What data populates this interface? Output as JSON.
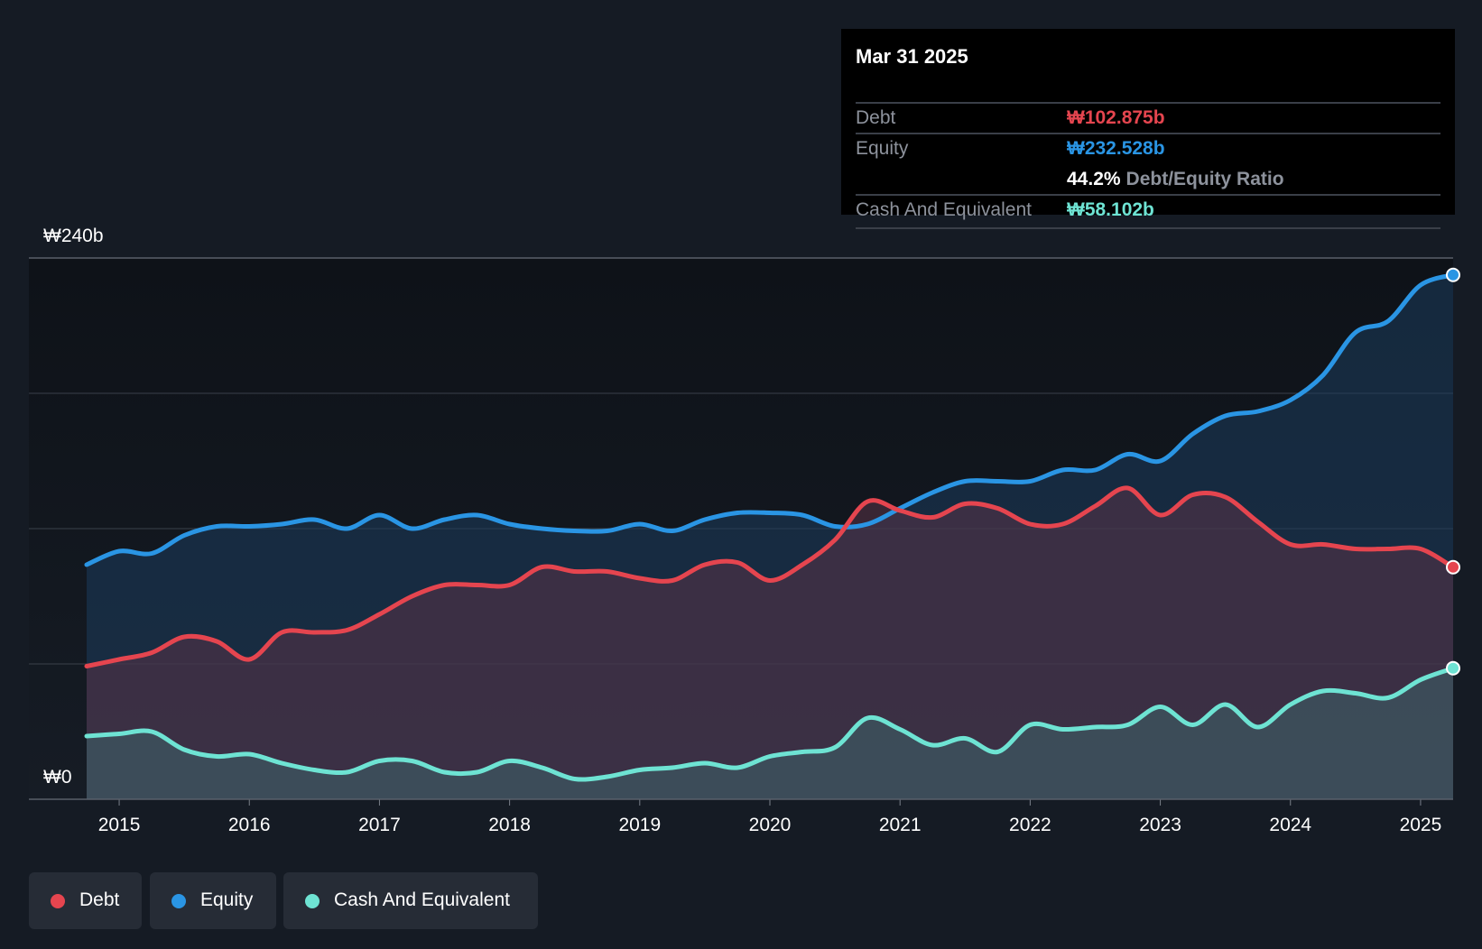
{
  "colors": {
    "debt": "#e5454f",
    "equity": "#2a95e4",
    "cash": "#6ee3d3",
    "grid": "#3a404a",
    "axis_text": "#ffffff"
  },
  "tooltip": {
    "date": "Mar 31 2025",
    "debt_label": "Debt",
    "debt_value": "₩102.875b",
    "equity_label": "Equity",
    "equity_value": "₩232.528b",
    "ratio_value": "44.2%",
    "ratio_label": "Debt/Equity Ratio",
    "cash_label": "Cash And Equivalent",
    "cash_value": "₩58.102b"
  },
  "legend": [
    {
      "label": "Debt",
      "color": "#e5454f"
    },
    {
      "label": "Equity",
      "color": "#2a95e4"
    },
    {
      "label": "Cash And Equivalent",
      "color": "#6ee3d3"
    }
  ],
  "chart_data": {
    "type": "area",
    "title": "",
    "xlabel": "",
    "ylabel": "",
    "currency": "KRW",
    "y_tick_labels": {
      "top": "₩240b",
      "bottom": "₩0"
    },
    "ylim": [
      0,
      240
    ],
    "xlim": [
      2014.75,
      2025.25
    ],
    "x_ticks": [
      2015,
      2016,
      2017,
      2018,
      2019,
      2020,
      2021,
      2022,
      2023,
      2024,
      2025
    ],
    "x_tick_labels": [
      "2015",
      "2016",
      "2017",
      "2018",
      "2019",
      "2020",
      "2021",
      "2022",
      "2023",
      "2024",
      "2025"
    ],
    "x": [
      2014.75,
      2015.0,
      2015.25,
      2015.5,
      2015.75,
      2016.0,
      2016.25,
      2016.5,
      2016.75,
      2017.0,
      2017.25,
      2017.5,
      2017.75,
      2018.0,
      2018.25,
      2018.5,
      2018.75,
      2019.0,
      2019.25,
      2019.5,
      2019.75,
      2020.0,
      2020.25,
      2020.5,
      2020.75,
      2021.0,
      2021.25,
      2021.5,
      2021.75,
      2022.0,
      2022.25,
      2022.5,
      2022.75,
      2023.0,
      2023.25,
      2023.5,
      2023.75,
      2024.0,
      2024.25,
      2024.5,
      2024.75,
      2025.0,
      2025.25
    ],
    "series": [
      {
        "name": "Equity",
        "values": [
          104,
          110,
          109,
          117,
          121,
          121,
          122,
          124,
          120,
          126,
          120,
          124,
          126,
          122,
          120,
          119,
          119,
          122,
          119,
          124,
          127,
          127,
          126,
          121,
          122,
          129,
          136,
          141,
          141,
          141,
          146,
          146,
          153,
          150,
          162,
          170,
          172,
          177,
          188,
          207,
          212,
          228,
          232.5
        ]
      },
      {
        "name": "Debt",
        "values": [
          59,
          62,
          65,
          72,
          70,
          62,
          74,
          74,
          75,
          82,
          90,
          95,
          95,
          95,
          103,
          101,
          101,
          98,
          97,
          104,
          105,
          97,
          104,
          115,
          132,
          128,
          125,
          131,
          129,
          122,
          122,
          130,
          138,
          126,
          135,
          134,
          123,
          113,
          113,
          111,
          111,
          111,
          102.9
        ]
      },
      {
        "name": "Cash And Equivalent",
        "values": [
          28,
          29,
          30,
          22,
          19,
          20,
          16,
          13,
          12,
          17,
          17,
          12,
          12,
          17,
          14,
          9,
          10,
          13,
          14,
          16,
          14,
          19,
          21,
          23,
          36,
          31,
          24,
          27,
          21,
          33,
          31,
          32,
          33,
          41,
          33,
          42,
          32,
          42,
          48,
          47,
          45,
          53,
          58.1
        ]
      }
    ]
  }
}
